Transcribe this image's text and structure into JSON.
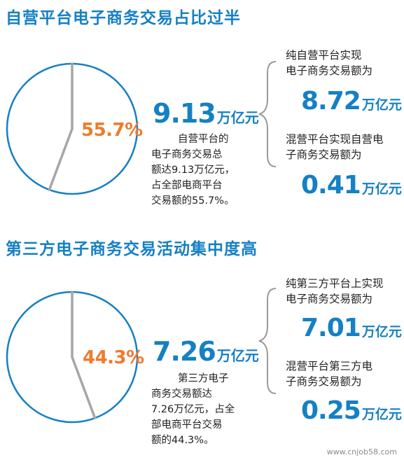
{
  "chart_data": [
    {
      "type": "pie",
      "title": "自营平台电子商务交易占比过半",
      "share_percent": 55.7,
      "share_label": "55.7%",
      "total_value": "9.13",
      "total_unit": "万亿元",
      "description_lines": [
        "自营平台的",
        "电子商务交易总",
        "额达9.13万亿元，",
        "占全部电商平台",
        "交易额的55.7%。"
      ],
      "breakdown": [
        {
          "label_lines": [
            "纯自营平台实现",
            "电子商务交易额为"
          ],
          "value": "8.72",
          "unit": "万亿元"
        },
        {
          "label_lines": [
            "混营平台实现自营电",
            "子商务交易额为"
          ],
          "value": "0.41",
          "unit": "万亿元"
        }
      ]
    },
    {
      "type": "pie",
      "title": "第三方电子商务交易活动集中度高",
      "share_percent": 44.3,
      "share_label": "44.3%",
      "total_value": "7.26",
      "total_unit": "万亿元",
      "description_lines": [
        "第三方电子",
        "商务交易额达",
        "7.26万亿元，占全",
        "部电商平台交易",
        "额的44.3%。"
      ],
      "breakdown": [
        {
          "label_lines": [
            "纯第三方平台上实现",
            "电子商务交易额为"
          ],
          "value": "7.01",
          "unit": "万亿元"
        },
        {
          "label_lines": [
            "混营平台第三方电",
            "子商务交易额为"
          ],
          "value": "0.25",
          "unit": "万亿元"
        }
      ]
    }
  ],
  "colors": {
    "accent": "#1580c4",
    "highlight": "#ef7b2c",
    "needle": "#a6a6a6"
  },
  "watermark": "www.cnjob58.com"
}
